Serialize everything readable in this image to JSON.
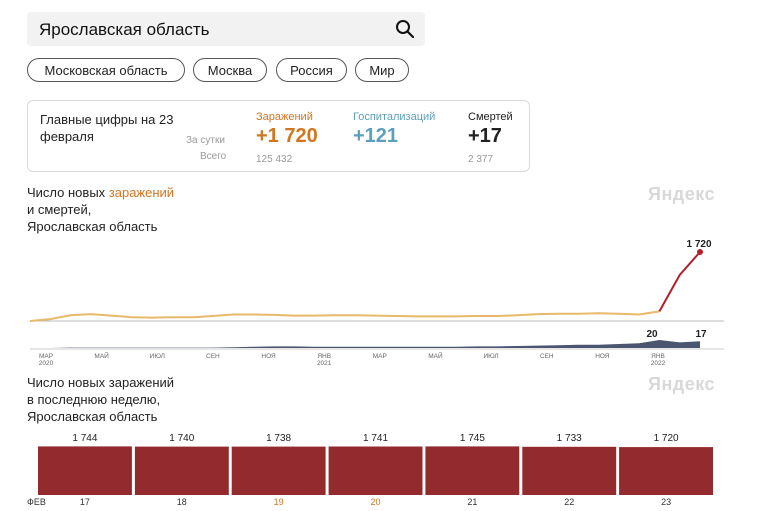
{
  "search": {
    "query": "Ярославская область"
  },
  "chips": [
    "Московская область",
    "Москва",
    "Россия",
    "Мир"
  ],
  "summary": {
    "title": "Главные цифры на 23 февраля",
    "row_day": "За сутки",
    "row_total": "Всего",
    "infected": {
      "label": "Заражений",
      "day": "+1 720",
      "total": "125 432",
      "color": "#d4741f"
    },
    "hospital": {
      "label": "Госпитализаций",
      "day": "+121",
      "total": "",
      "color": "#5b9fbd"
    },
    "deaths": {
      "label": "Смертей",
      "day": "+17",
      "total": "2 377",
      "color": "#222222"
    }
  },
  "chart1": {
    "title_part1": "Число новых ",
    "title_highlight": "заражений",
    "title_part2": "и смертей,",
    "title_part3": "Ярославская область",
    "watermark": "Яндекс",
    "last_infections_label": "1 720",
    "deaths_label_peak": "20",
    "deaths_label_last": "17"
  },
  "chart_data": [
    {
      "type": "line",
      "series": [
        {
          "points": [
            0,
            5,
            15,
            18,
            14,
            10,
            9,
            10,
            10,
            13,
            17,
            17,
            16,
            14,
            14,
            15,
            15,
            14,
            13,
            12,
            12,
            12,
            13,
            13,
            15,
            18,
            19,
            19,
            20,
            19,
            17,
            25,
            120,
            180
          ]
        },
        {
          "points": [
            0,
            0,
            1,
            1,
            1,
            1,
            1,
            1,
            1,
            1,
            2,
            3,
            4,
            4,
            3,
            3,
            3,
            3,
            3,
            3,
            3,
            3,
            4,
            4,
            5,
            6,
            7,
            8,
            8,
            10,
            12,
            20,
            14,
            17
          ]
        }
      ],
      "x_tick_labels": [
        "МАР 2020",
        "МАЙ",
        "ИЮЛ",
        "СЕН",
        "НОЯ",
        "ЯНВ 2021",
        "МАР",
        "МАЙ",
        "ИЮЛ",
        "СЕН",
        "НОЯ",
        "ЯНВ 2022"
      ],
      "colors": {
        "infections": "#e8b86b",
        "infections_end": "#b0202a",
        "deaths": "#4a5570"
      }
    },
    {
      "type": "bar",
      "title_lines": [
        "Число новых заражений",
        "в последнюю неделю,",
        "Ярославская область"
      ],
      "watermark": "Яндекс",
      "month_label": "ФЕВ",
      "categories": [
        "17",
        "18",
        "19",
        "20",
        "21",
        "22",
        "23"
      ],
      "values": [
        1744,
        1740,
        1738,
        1741,
        1745,
        1733,
        1720
      ],
      "value_labels": [
        "1 744",
        "1 740",
        "1 738",
        "1 741",
        "1 745",
        "1 733",
        "1 720"
      ],
      "weekend": [
        false,
        false,
        true,
        true,
        false,
        false,
        false
      ],
      "bar_color": "#932a2e"
    }
  ]
}
